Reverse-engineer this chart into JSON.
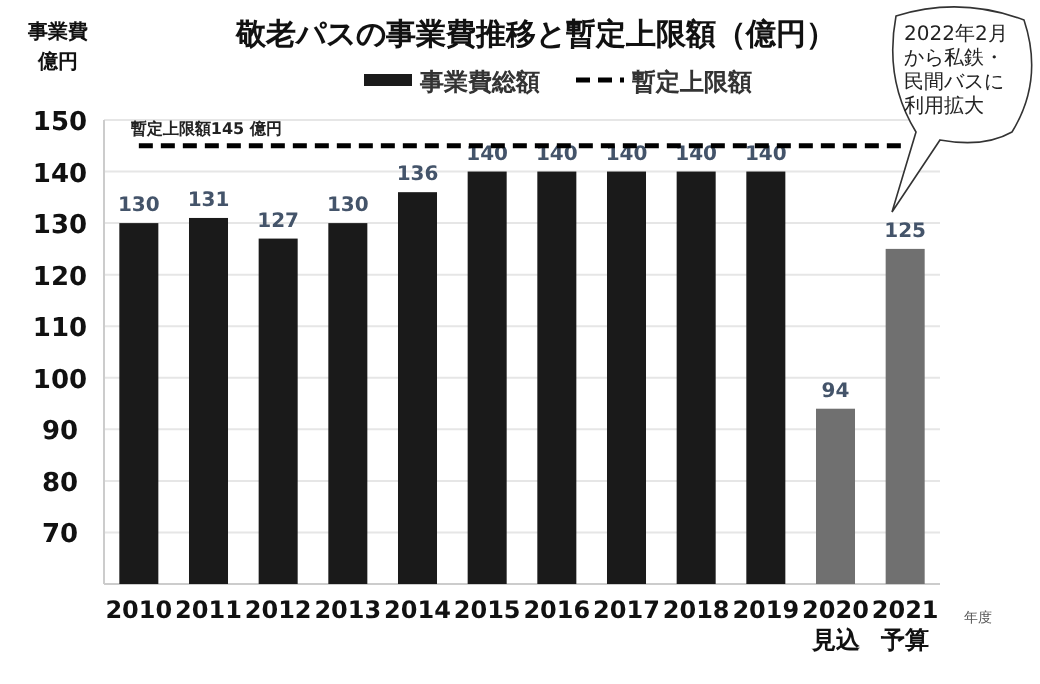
{
  "chart_data": {
    "type": "bar",
    "title": "敬老パスの事業費推移と暫定上限額（億円）",
    "ylabel": "事業費億円",
    "xlabel": "年度",
    "categories": [
      "2010",
      "2011",
      "2012",
      "2013",
      "2014",
      "2015",
      "2016",
      "2017",
      "2018",
      "2019",
      "2020\n見込",
      "2021\n予算"
    ],
    "series": [
      {
        "name": "事業費総額",
        "color": "#1a1a1a",
        "colors": [
          "#1a1a1a",
          "#1a1a1a",
          "#1a1a1a",
          "#1a1a1a",
          "#1a1a1a",
          "#1a1a1a",
          "#1a1a1a",
          "#1a1a1a",
          "#1a1a1a",
          "#1a1a1a",
          "#707070",
          "#707070"
        ],
        "values": [
          130,
          131,
          127,
          130,
          136,
          140,
          140,
          140,
          140,
          140,
          94,
          125
        ],
        "value_labels": [
          "130",
          "131",
          "127",
          "130",
          "136",
          "140",
          "140",
          "140",
          "140",
          "140",
          "94",
          "125"
        ]
      },
      {
        "name": "暫定上限額",
        "type": "line",
        "line_style": "dashed",
        "color": "#000000",
        "values": [
          145,
          145,
          145,
          145,
          145,
          145,
          145,
          145,
          145,
          145,
          145,
          145
        ]
      }
    ],
    "ylim": [
      60,
      150
    ],
    "yticks": [
      70,
      80,
      90,
      100,
      110,
      120,
      130,
      140,
      150
    ],
    "grid": "y",
    "legend": "top",
    "annotations": [
      {
        "text": "暫定上限額145 億円",
        "x": "2010",
        "y": 145
      },
      "2022年2月から私鉄・民間バスに利用拡大"
    ]
  }
}
